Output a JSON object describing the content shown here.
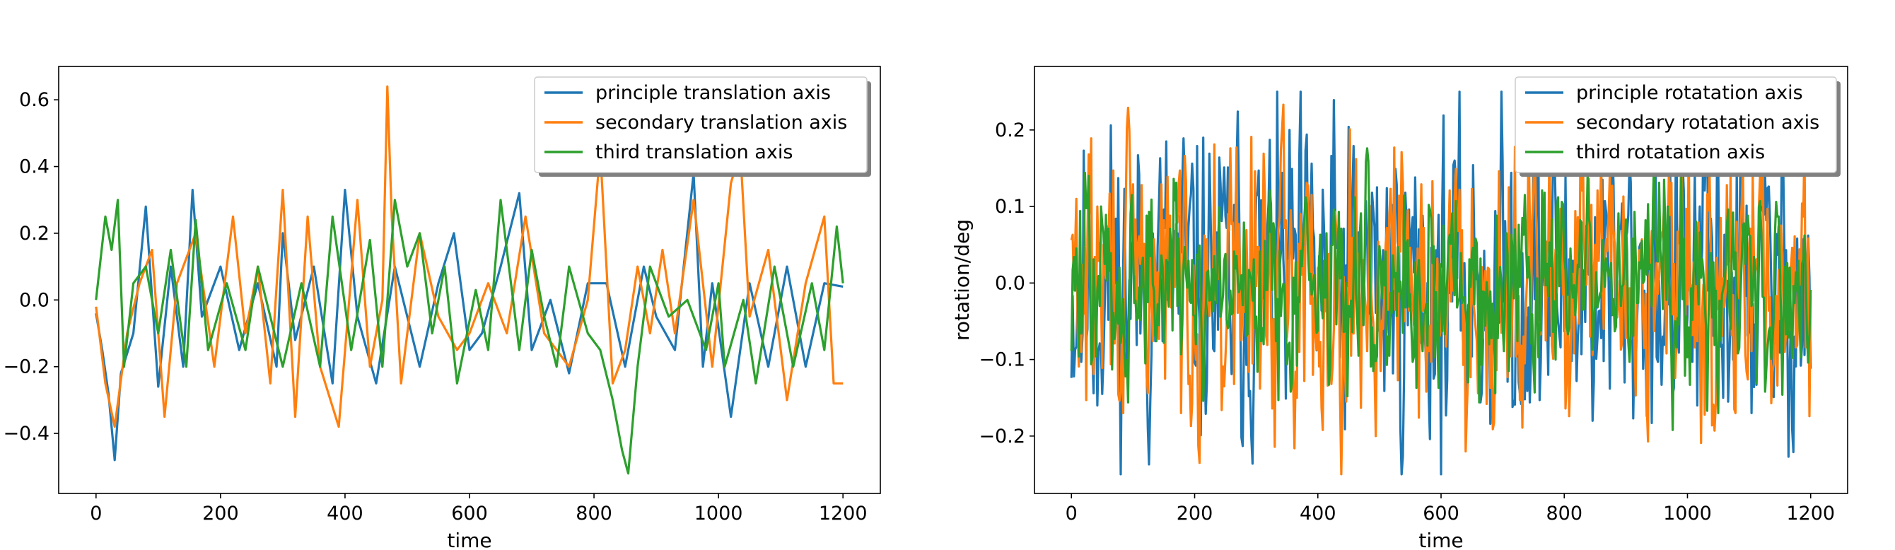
{
  "colors": {
    "blue": "#1f77b4",
    "orange": "#ff7f0e",
    "green": "#2ca02c"
  },
  "chart_data": [
    {
      "type": "line",
      "title": "",
      "xlabel": "time",
      "ylabel": "",
      "xlim": [
        -60,
        1260
      ],
      "ylim": [
        -0.58,
        0.7
      ],
      "xticks": [
        0,
        200,
        400,
        600,
        800,
        1000,
        1200
      ],
      "yticks": [
        -0.4,
        -0.2,
        0.0,
        0.2,
        0.4,
        0.6
      ],
      "ytick_labels": [
        "−0.4",
        "−0.2",
        "0.0",
        "0.2",
        "0.4",
        "0.6"
      ],
      "grid": false,
      "legend_position": "top-right",
      "series": [
        {
          "name": "principle translation axis",
          "color": "#1f77b4",
          "x": [
            0,
            10,
            20,
            30,
            40,
            60,
            80,
            100,
            120,
            140,
            155,
            170,
            200,
            230,
            260,
            290,
            300,
            320,
            350,
            380,
            400,
            420,
            450,
            480,
            520,
            550,
            575,
            600,
            620,
            650,
            680,
            700,
            730,
            760,
            790,
            820,
            850,
            880,
            900,
            930,
            960,
            975,
            990,
            1020,
            1050,
            1080,
            1110,
            1140,
            1170,
            1200
          ],
          "y": [
            -0.04,
            -0.15,
            -0.28,
            -0.48,
            -0.22,
            -0.1,
            0.28,
            -0.26,
            0.1,
            -0.2,
            0.33,
            -0.05,
            0.1,
            -0.15,
            0.05,
            -0.2,
            0.2,
            -0.12,
            0.1,
            -0.25,
            0.33,
            -0.05,
            -0.25,
            0.1,
            -0.2,
            0.05,
            0.2,
            -0.15,
            -0.1,
            0.1,
            0.32,
            -0.15,
            0.0,
            -0.22,
            0.05,
            0.05,
            -0.2,
            0.1,
            -0.05,
            -0.15,
            0.38,
            -0.2,
            0.05,
            -0.35,
            0.05,
            -0.2,
            0.1,
            -0.2,
            0.05,
            0.04
          ]
        },
        {
          "name": "secondary translation axis",
          "color": "#ff7f0e",
          "x": [
            0,
            15,
            30,
            50,
            70,
            90,
            110,
            130,
            160,
            190,
            220,
            240,
            260,
            280,
            300,
            320,
            340,
            360,
            390,
            420,
            440,
            460,
            468,
            475,
            490,
            520,
            550,
            580,
            600,
            630,
            660,
            690,
            720,
            760,
            790,
            810,
            830,
            850,
            870,
            890,
            910,
            930,
            960,
            990,
            1020,
            1035,
            1050,
            1080,
            1110,
            1140,
            1170,
            1185,
            1200
          ],
          "y": [
            -0.02,
            -0.25,
            -0.38,
            -0.1,
            0.05,
            0.15,
            -0.35,
            0.05,
            0.2,
            -0.2,
            0.25,
            -0.1,
            0.1,
            -0.25,
            0.33,
            -0.35,
            0.25,
            -0.2,
            -0.38,
            0.3,
            -0.2,
            0.0,
            0.64,
            0.25,
            -0.25,
            0.2,
            -0.05,
            -0.15,
            -0.1,
            0.05,
            -0.1,
            0.25,
            -0.1,
            -0.2,
            0.0,
            0.45,
            -0.25,
            -0.15,
            0.1,
            -0.1,
            0.15,
            -0.1,
            0.3,
            -0.2,
            0.35,
            0.45,
            -0.05,
            0.15,
            -0.3,
            0.05,
            0.25,
            -0.25,
            -0.25
          ]
        },
        {
          "name": "third translation axis",
          "color": "#2ca02c",
          "x": [
            0,
            15,
            25,
            35,
            45,
            60,
            80,
            100,
            120,
            145,
            160,
            180,
            210,
            240,
            260,
            300,
            330,
            360,
            380,
            410,
            440,
            460,
            480,
            500,
            520,
            540,
            560,
            580,
            610,
            630,
            650,
            680,
            700,
            720,
            740,
            760,
            790,
            810,
            830,
            845,
            855,
            870,
            890,
            920,
            950,
            980,
            1000,
            1010,
            1040,
            1060,
            1090,
            1120,
            1150,
            1170,
            1190,
            1200
          ],
          "y": [
            0.0,
            0.25,
            0.15,
            0.3,
            -0.2,
            0.05,
            0.1,
            -0.1,
            0.15,
            -0.2,
            0.24,
            -0.15,
            0.05,
            -0.15,
            0.1,
            -0.2,
            0.05,
            -0.2,
            0.25,
            -0.15,
            0.18,
            -0.2,
            0.3,
            0.1,
            0.2,
            -0.1,
            0.1,
            -0.25,
            0.03,
            -0.15,
            0.3,
            -0.15,
            0.15,
            -0.05,
            -0.2,
            0.1,
            -0.1,
            -0.15,
            -0.3,
            -0.45,
            -0.52,
            -0.2,
            0.1,
            -0.05,
            0.0,
            -0.15,
            0.05,
            -0.2,
            0.0,
            -0.25,
            0.1,
            -0.2,
            0.05,
            -0.15,
            0.22,
            0.05
          ]
        }
      ]
    },
    {
      "type": "line",
      "title": "",
      "xlabel": "time",
      "ylabel": "rotation/deg",
      "xlim": [
        -60,
        1260
      ],
      "ylim": [
        -0.275,
        0.283
      ],
      "xticks": [
        0,
        200,
        400,
        600,
        800,
        1000,
        1200
      ],
      "yticks": [
        -0.2,
        -0.1,
        0.0,
        0.1,
        0.2
      ],
      "ytick_labels": [
        "−0.2",
        "−0.1",
        "0.0",
        "0.1",
        "0.2"
      ],
      "grid": false,
      "legend_position": "top-right",
      "series": [
        {
          "name": "principle rotatation axis",
          "color": "#1f77b4",
          "amplitude": 0.14,
          "seed": 11
        },
        {
          "name": "secondary rotatation axis",
          "color": "#ff7f0e",
          "amplitude": 0.12,
          "seed": 29
        },
        {
          "name": "third rotatation axis",
          "color": "#2ca02c",
          "amplitude": 0.09,
          "seed": 47
        }
      ]
    }
  ]
}
